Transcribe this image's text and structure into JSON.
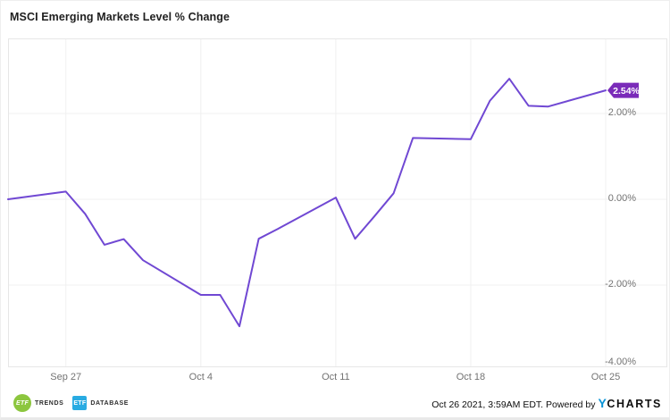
{
  "header": {
    "title": "MSCI Emerging Markets Level % Change"
  },
  "chart_data": {
    "type": "line",
    "title": "MSCI Emerging Markets Level % Change",
    "series": [
      {
        "name": "MSCI Emerging Markets Level % Change",
        "color": "#7048d3",
        "points": [
          {
            "date": "Sep 24",
            "day_offset": 0,
            "value": 0.0
          },
          {
            "date": "Sep 27",
            "day_offset": 3,
            "value": 0.18
          },
          {
            "date": "Sep 28",
            "day_offset": 4,
            "value": -0.34
          },
          {
            "date": "Sep 29",
            "day_offset": 5,
            "value": -1.06
          },
          {
            "date": "Sep 30",
            "day_offset": 6,
            "value": -0.93
          },
          {
            "date": "Oct 1",
            "day_offset": 7,
            "value": -1.42
          },
          {
            "date": "Oct 4",
            "day_offset": 10,
            "value": -2.23
          },
          {
            "date": "Oct 5",
            "day_offset": 11,
            "value": -2.23
          },
          {
            "date": "Oct 6",
            "day_offset": 12,
            "value": -2.96
          },
          {
            "date": "Oct 7",
            "day_offset": 13,
            "value": -0.92
          },
          {
            "date": "Oct 8",
            "day_offset": 14,
            "value": -0.69
          },
          {
            "date": "Oct 11",
            "day_offset": 17,
            "value": 0.04
          },
          {
            "date": "Oct 12",
            "day_offset": 18,
            "value": -0.92
          },
          {
            "date": "Oct 13",
            "day_offset": 19,
            "value": -0.4
          },
          {
            "date": "Oct 14",
            "day_offset": 20,
            "value": 0.14
          },
          {
            "date": "Oct 15",
            "day_offset": 21,
            "value": 1.43
          },
          {
            "date": "Oct 18",
            "day_offset": 24,
            "value": 1.4
          },
          {
            "date": "Oct 19",
            "day_offset": 25,
            "value": 2.3
          },
          {
            "date": "Oct 20",
            "day_offset": 26,
            "value": 2.81
          },
          {
            "date": "Oct 21",
            "day_offset": 27,
            "value": 2.18
          },
          {
            "date": "Oct 22",
            "day_offset": 28,
            "value": 2.16
          },
          {
            "date": "Oct 25",
            "day_offset": 31,
            "value": 2.54
          }
        ]
      }
    ],
    "x_ticks": [
      {
        "label": "Sep 27",
        "day_offset": 3
      },
      {
        "label": "Oct 4",
        "day_offset": 10
      },
      {
        "label": "Oct 11",
        "day_offset": 17
      },
      {
        "label": "Oct 18",
        "day_offset": 24
      },
      {
        "label": "Oct 25",
        "day_offset": 31
      }
    ],
    "y_ticks": [
      {
        "label": "2.00%",
        "value": 2
      },
      {
        "label": "0.00%",
        "value": 0
      },
      {
        "label": "-2.00%",
        "value": -2
      },
      {
        "label": "-4.00%",
        "value": -4
      }
    ],
    "ylim": [
      -3.92,
      3.75
    ],
    "grid": true,
    "legend": "none",
    "end_label": {
      "text": "2.54%",
      "bg_color": "#7a2bb9",
      "text_color": "#ffffff"
    },
    "colors": {
      "gridline": "#f0f0f0",
      "plot_border": "#e7e7e7",
      "tick_text": "#737373"
    }
  },
  "footer": {
    "logos": [
      {
        "name": "ETF Trends",
        "badge_text": "ETF",
        "label": "TRENDS",
        "color": "#8cc63e",
        "shape": "circle"
      },
      {
        "name": "ETF Database",
        "badge_text": "ETF",
        "label": "DATABASE",
        "color": "#29abe2",
        "shape": "square"
      }
    ],
    "timestamp": "Oct 26 2021, 3:59AM EDT. Powered by",
    "ycharts_logo": {
      "y": "Y",
      "rest": "CHARTS"
    }
  }
}
